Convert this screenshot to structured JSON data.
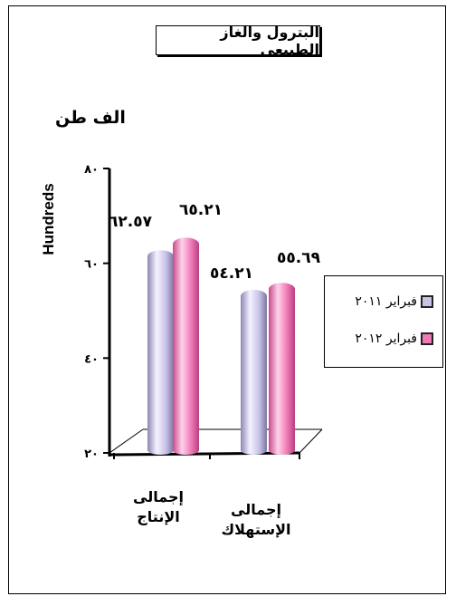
{
  "title": "البترول والغاز الطبيعى",
  "unit_label": "الف طن",
  "chart_data": {
    "type": "bar",
    "title": "البترول والغاز الطبيعى",
    "ylabel": "Hundreds",
    "ylim": [
      20,
      80
    ],
    "yticks": [
      20,
      40,
      60,
      80
    ],
    "ytick_labels": [
      "٢٠",
      "٤٠",
      "٦٠",
      "٨٠"
    ],
    "categories": [
      "إجمالى الإنتاج",
      "إجمالى الإستهلاك"
    ],
    "series": [
      {
        "name": "فبراير ٢٠١١",
        "values": [
          62.57,
          54.21
        ],
        "value_labels": [
          "٦٢.٥٧",
          "٥٤.٢١"
        ],
        "color": "#c9c2e8"
      },
      {
        "name": "فبراير ٢٠١٢",
        "values": [
          65.21,
          55.69
        ],
        "value_labels": [
          "٦٥.٢١",
          "٥٥.٦٩"
        ],
        "color": "#f07ab6"
      }
    ],
    "legend_position": "right",
    "grid": false
  },
  "categories_display": [
    [
      "إجمالى",
      "الإنتاج"
    ],
    [
      "إجمالى",
      "الإستهلاك"
    ]
  ]
}
